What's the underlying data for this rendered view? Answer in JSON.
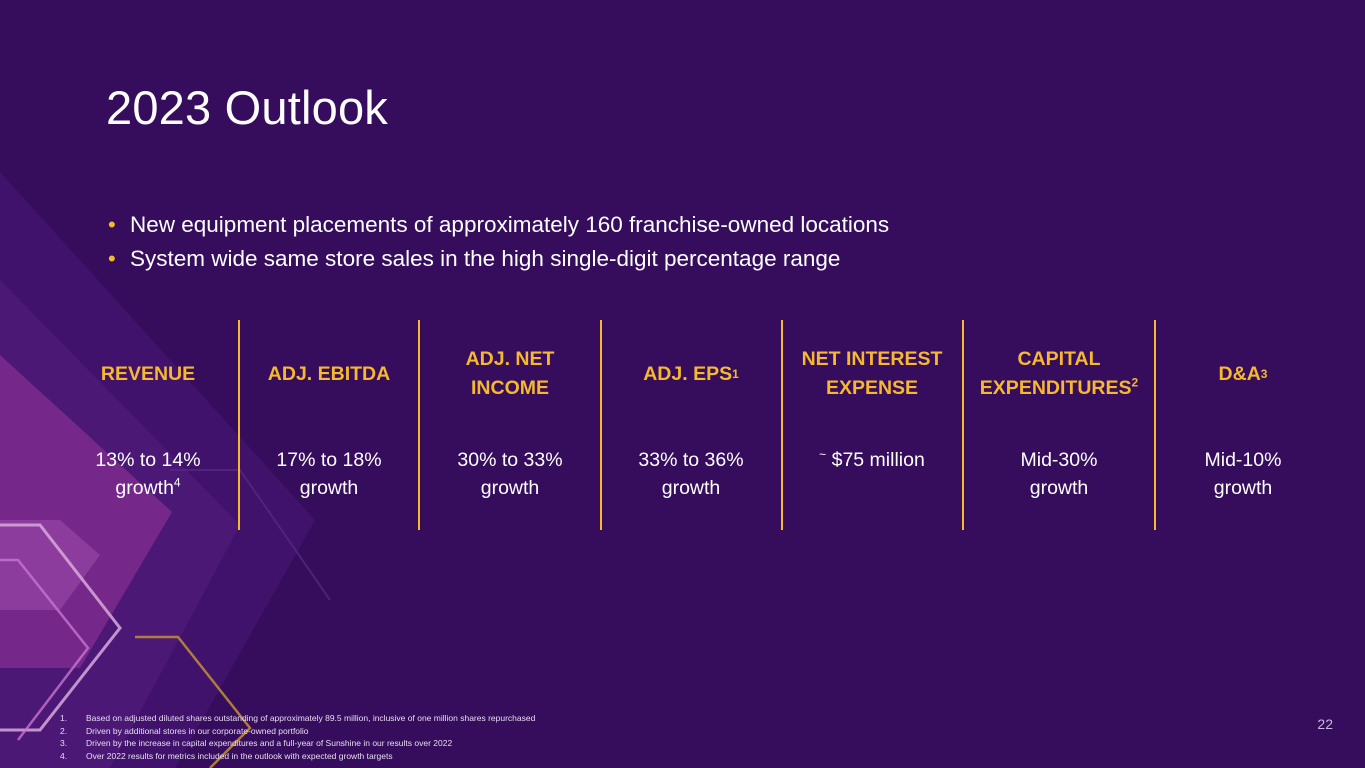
{
  "title": "2023 Outlook",
  "bullets": [
    "New equipment placements of approximately 160 franchise-owned locations",
    "System wide same store sales in the high single-digit percentage range"
  ],
  "bullet_marker": "•",
  "metrics": [
    {
      "label": "REVENUE",
      "sup": "",
      "value_line1": "13% to 14%",
      "value_line2": "growth",
      "value_sup": "4"
    },
    {
      "label": "ADJ. EBITDA",
      "sup": "",
      "value_line1": "17% to 18%",
      "value_line2": "growth",
      "value_sup": ""
    },
    {
      "label_line1": "ADJ. NET",
      "label_line2": "INCOME",
      "sup": "",
      "value_line1": "30% to 33%",
      "value_line2": "growth",
      "value_sup": ""
    },
    {
      "label": "ADJ. EPS",
      "sup": "1",
      "value_line1": "33% to 36%",
      "value_line2": "growth",
      "value_sup": ""
    },
    {
      "label_line1": "NET INTEREST",
      "label_line2": "EXPENSE",
      "sup": "",
      "value_prefix": "~",
      "value_line1": "$75 million",
      "value_line2": "",
      "value_sup": ""
    },
    {
      "label_line1": "CAPITAL",
      "label_line2": "EXPENDITURES",
      "sup": "2",
      "value_line1": "Mid-30%",
      "value_line2": "growth",
      "value_sup": ""
    },
    {
      "label": "D&A",
      "sup": "3",
      "value_line1": "Mid-10%",
      "value_line2": "growth",
      "value_sup": ""
    }
  ],
  "footnotes": [
    {
      "num": "1.",
      "text": "Based on adjusted diluted shares outstanding of approximately 89.5 million, inclusive of one million shares repurchased"
    },
    {
      "num": "2.",
      "text": "Driven by additional stores in our corporate-owned portfolio"
    },
    {
      "num": "3.",
      "text": "Driven by the increase in capital expenditures and a full-year of Sunshine in our results over 2022"
    },
    {
      "num": "4.",
      "text": "Over 2022 results for metrics included in the outlook with expected growth targets"
    }
  ],
  "page_number": "22",
  "colors": {
    "background": "#360d5c",
    "accent": "#f5b82e",
    "text": "#ffffff",
    "decor_magenta": "#7a2a8c",
    "decor_gold": "#b88a3a"
  }
}
